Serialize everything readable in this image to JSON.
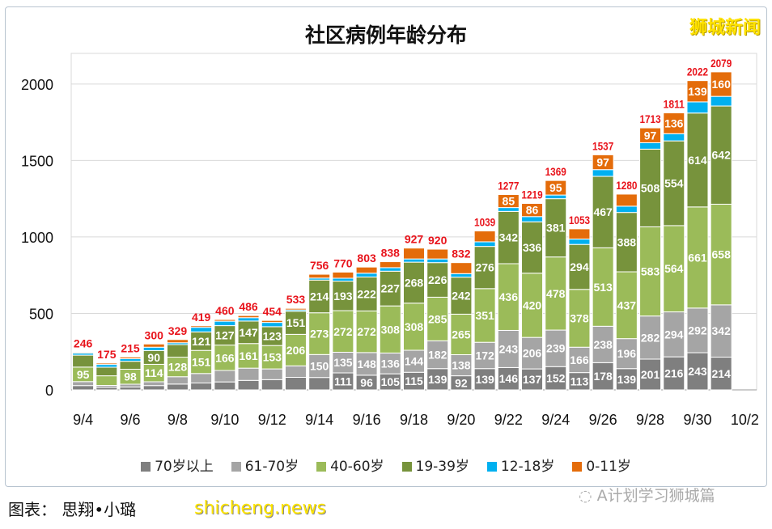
{
  "watermark": "狮城新闻",
  "credit": "图表： 思翔•小璐",
  "site_watermark": "shicheng.news",
  "wechat_watermark": "A计划学习狮城篇",
  "chart_data": {
    "type": "bar",
    "stacked": true,
    "title": "社区病例年龄分布",
    "xlabel": "",
    "ylabel": "",
    "ylim": [
      0,
      2200
    ],
    "yticks": [
      "0",
      "500",
      "1000",
      "1500",
      "2000"
    ],
    "xticks": [
      "9/4",
      "9/6",
      "9/8",
      "9/10",
      "9/12",
      "9/14",
      "9/16",
      "9/18",
      "9/20",
      "9/22",
      "9/24",
      "9/26",
      "9/28",
      "9/30",
      "10/2"
    ],
    "grid": true,
    "legend": "bottom",
    "categories": [
      "9/4",
      "9/5",
      "9/6",
      "9/7",
      "9/8",
      "9/9",
      "9/10",
      "9/11",
      "9/12",
      "9/13",
      "9/14",
      "9/15",
      "9/16",
      "9/17",
      "9/18",
      "9/19",
      "9/20",
      "9/21",
      "9/22",
      "9/23",
      "9/24",
      "9/25",
      "9/26",
      "9/27",
      "9/28",
      "9/29",
      "9/30",
      "10/1"
    ],
    "totals": [
      246,
      175,
      215,
      300,
      329,
      419,
      460,
      486,
      454,
      533,
      756,
      770,
      803,
      838,
      927,
      920,
      832,
      1039,
      1277,
      1219,
      1369,
      1053,
      1537,
      1280,
      1713,
      1811,
      2022,
      2079
    ],
    "series": [
      {
        "name": "70岁以上",
        "color": "#7f7f7f",
        "values": [
          28,
          17,
          19,
          28,
          38,
          45,
          52,
          62,
          67,
          82,
          81,
          111,
          96,
          105,
          115,
          139,
          92,
          139,
          146,
          137,
          152,
          113,
          178,
          139,
          201,
          216,
          243,
          214
        ]
      },
      {
        "name": "61-70岁",
        "color": "#a5a5a5",
        "values": [
          26,
          12,
          18,
          25,
          48,
          62,
          75,
          80,
          70,
          75,
          150,
          135,
          148,
          136,
          144,
          182,
          138,
          172,
          243,
          206,
          239,
          166,
          238,
          196,
          282,
          294,
          292,
          342
        ]
      },
      {
        "name": "40-60岁",
        "color": "#9bbb59",
        "values": [
          95,
          63,
          98,
          114,
          128,
          151,
          166,
          161,
          153,
          206,
          273,
          272,
          272,
          308,
          308,
          285,
          265,
          351,
          436,
          420,
          478,
          378,
          513,
          437,
          583,
          564,
          661,
          658
        ]
      },
      {
        "name": "19-39岁",
        "color": "#77933c",
        "values": [
          78,
          56,
          52,
          90,
          82,
          121,
          127,
          147,
          123,
          151,
          214,
          193,
          222,
          227,
          268,
          226,
          242,
          276,
          342,
          336,
          381,
          294,
          467,
          388,
          508,
          554,
          614,
          642
        ]
      },
      {
        "name": "12-18岁",
        "color": "#00b0f0",
        "values": [
          13,
          18,
          17,
          22,
          12,
          30,
          29,
          22,
          28,
          9,
          13,
          19,
          25,
          23,
          21,
          24,
          23,
          30,
          25,
          34,
          24,
          35,
          44,
          41,
          42,
          47,
          73,
          63
        ]
      },
      {
        "name": "0-11岁",
        "color": "#e46c0a",
        "values": [
          6,
          9,
          11,
          21,
          21,
          10,
          11,
          14,
          13,
          10,
          25,
          40,
          40,
          39,
          71,
          64,
          72,
          71,
          85,
          86,
          95,
          67,
          97,
          79,
          97,
          136,
          139,
          160
        ]
      }
    ]
  }
}
